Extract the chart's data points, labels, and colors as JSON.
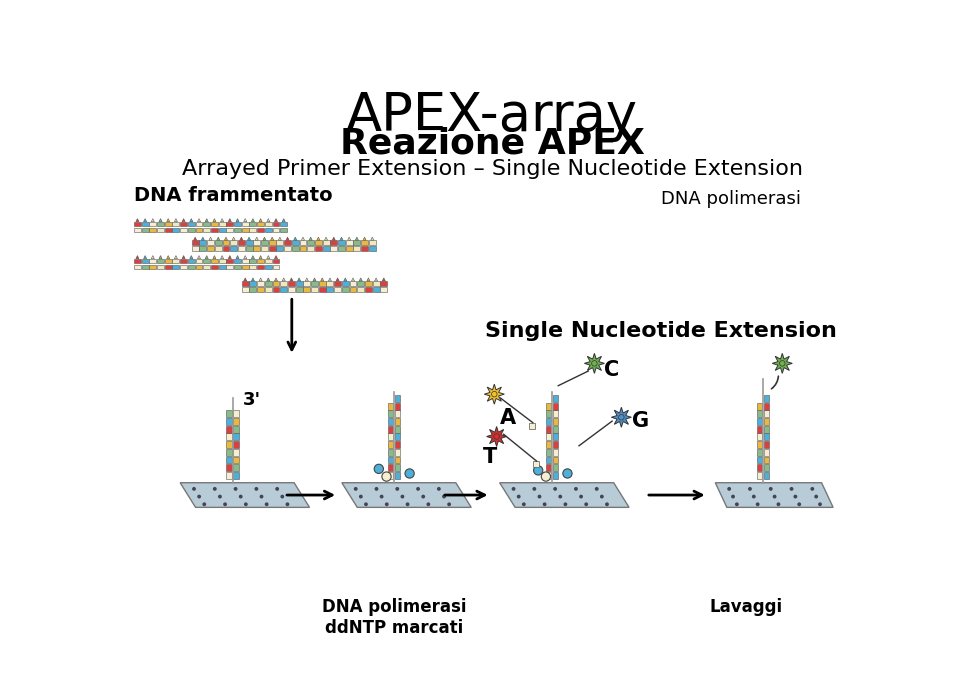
{
  "title_line1": "APEX-array",
  "title_line2": "Reazione APEX",
  "subtitle": "Arrayed Primer Extension – Single Nucleotide Extension",
  "label_dna_frammentato": "DNA frammentato",
  "label_dna_polimerasi_top": "DNA polimerasi",
  "label_single_nucleotide": "Single Nucleotide Extension",
  "label_3prime": "3'",
  "label_dna_pol_ddntp": "DNA polimerasi\nddNTP marcati",
  "label_lavaggi": "Lavaggi",
  "label_A": "A",
  "label_T": "T",
  "label_C": "C",
  "label_G": "G",
  "bg_color": "#ffffff",
  "platform_color": "#b8ccd8",
  "platform_edge": "#777777",
  "dot_color": "#444455",
  "strand_beige": "#f5eed0",
  "nucleotide_red": "#d94040",
  "nucleotide_blue": "#4eb0d8",
  "nucleotide_green": "#88bb88",
  "nucleotide_yellow": "#e8b840",
  "nucleotide_cream": "#f0e8c0",
  "star_yellow": "#f0c030",
  "star_red": "#d83030",
  "star_green": "#70b050",
  "star_blue": "#5090c8",
  "arrow_color": "#111111"
}
